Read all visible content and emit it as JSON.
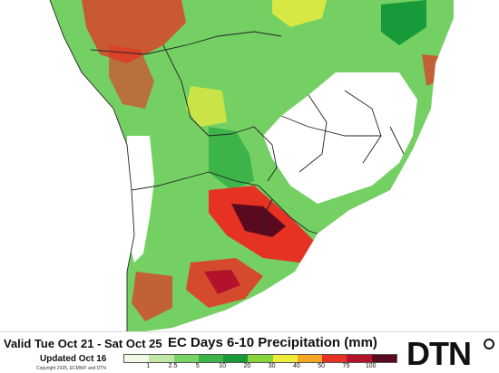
{
  "header": {
    "valid_text": "Valid Tue Oct 21 - Sat Oct 25",
    "title": "EC Days 6-10 Precipitation (mm)",
    "updated_text": "Updated Oct 16",
    "copyright": "Copyright 2025, ECMWF and DTN"
  },
  "brand": {
    "name": "DTN",
    "color": "#111111"
  },
  "legend": {
    "ticks": [
      "1",
      "2.5",
      "5",
      "10",
      "20",
      "30",
      "40",
      "50",
      "75",
      "100"
    ],
    "colors": [
      "#f0f8e6",
      "#bfe8a6",
      "#78d465",
      "#3cb44a",
      "#179a3a",
      "#87d43c",
      "#f0ec3c",
      "#f5a623",
      "#e63223",
      "#b3122a",
      "#5a0a1e"
    ]
  },
  "map": {
    "ocean_color": "#ffffff",
    "dry_land_color": "#ffffff",
    "light_rain_color": "#74d063",
    "border_color": "#222222"
  }
}
